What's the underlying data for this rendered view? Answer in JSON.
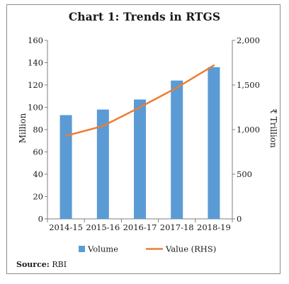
{
  "source": {
    "label": "Source:",
    "text": "RBI"
  },
  "chart_data": {
    "type": "bar",
    "title": "Chart 1: Trends in RTGS",
    "xlabel": "",
    "ylabel": "Million",
    "y2label": "₹ Trillion",
    "categories": [
      "2014-15",
      "2015-16",
      "2016-17",
      "2017-18",
      "2018-19"
    ],
    "series": [
      {
        "name": "Volume",
        "type": "bar",
        "axis": "left",
        "color": "#5b9bd5",
        "values": [
          93,
          98,
          107,
          124,
          136
        ]
      },
      {
        "name": "Value (RHS)",
        "type": "line",
        "axis": "right",
        "color": "#ed7d31",
        "values": [
          930,
          1040,
          1250,
          1470,
          1720
        ]
      }
    ],
    "ylim": [
      0,
      160
    ],
    "yticks": [
      "0",
      "20",
      "40",
      "60",
      "80",
      "100",
      "120",
      "140",
      "160"
    ],
    "y2lim": [
      0,
      2000
    ],
    "y2ticks": [
      "0",
      "500",
      "1,000",
      "1,500",
      "2,000"
    ],
    "grid": false,
    "legend": "bottom"
  }
}
